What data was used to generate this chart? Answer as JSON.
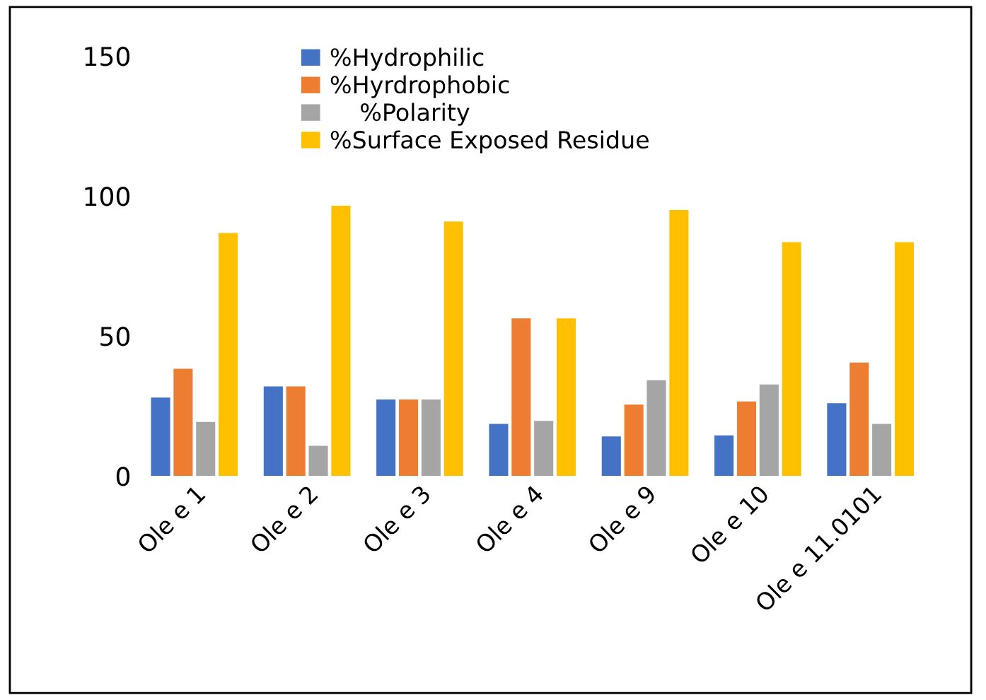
{
  "chart_data": {
    "type": "bar",
    "categories": [
      "Ole e 1",
      "Ole e 2",
      "Ole e 3",
      "Ole e 4",
      "Ole e 9",
      "Ole e 10",
      "Ole e 11.0101"
    ],
    "series": [
      {
        "name": "%Hydrophilic",
        "color": "#4472c4",
        "values": [
          28,
          32,
          27.3,
          18.6,
          14.1,
          14.5,
          26
        ]
      },
      {
        "name": "%Hyrdrophobic",
        "color": "#ed7d31",
        "values": [
          38.3,
          32,
          27.3,
          56.3,
          25.5,
          26.6,
          40.5
        ]
      },
      {
        "name": "    %Polarity",
        "color": "#a5a5a5",
        "values": [
          19.3,
          10.8,
          27.3,
          19.7,
          34.2,
          32.7,
          18.6
        ]
      },
      {
        "name": "%Surface Exposed Residue",
        "color": "#ffc000",
        "values": [
          86.8,
          96.5,
          90.9,
          56.3,
          95,
          83.5,
          83.5
        ]
      }
    ],
    "ylim": [
      0,
      150
    ],
    "yticks": [
      0,
      50,
      100,
      150
    ],
    "grid": false,
    "legend": "top left"
  }
}
